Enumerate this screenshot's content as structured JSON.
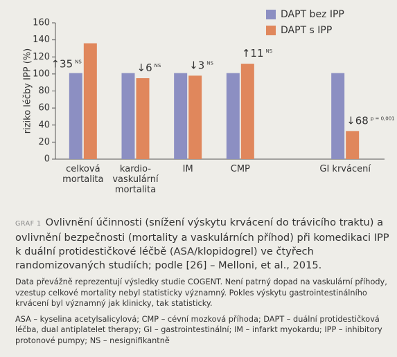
{
  "chart_data": {
    "type": "bar",
    "y_label": "riziko léčby IPP (%)",
    "categories": [
      "celková\nmortalita",
      "kardio-\nvaskulární\nmortalita",
      "IM",
      "CMP",
      null,
      "GI krvácení"
    ],
    "series": [
      {
        "name": "DAPT bez IPP",
        "color": "#8c8fc2",
        "values": [
          101,
          101,
          101,
          101,
          null,
          101
        ]
      },
      {
        "name": "DAPT s IPP",
        "color": "#e0875c",
        "values": [
          136,
          95,
          98,
          112,
          null,
          33
        ]
      }
    ],
    "annotations": [
      {
        "text": "↑35",
        "note": "NS"
      },
      {
        "text": "↓6",
        "note": "NS"
      },
      {
        "text": "↓3",
        "note": "NS"
      },
      {
        "text": "↑11",
        "note": "NS"
      },
      null,
      {
        "text": "↓68",
        "note": "p = 0,001"
      }
    ],
    "ylim": [
      0,
      160
    ],
    "yticks": [
      0,
      20,
      40,
      60,
      80,
      100,
      120,
      140,
      160
    ],
    "legend": "top-right"
  },
  "caption": {
    "label": "GRAF 1",
    "title": "Ovlivnění účinnosti (snížení výskytu krvácení do trávicího traktu) a ovlivnění bezpečnosti (mortality a vaskulárních příhod) při komedikaci IPP k duální protidestičkové léčbě (ASA/klopidogrel) ve čtyřech randomizovaných studiích; podle [26] – Melloni, et al., 2015.",
    "notes": [
      "Data převážně reprezentují výsledky studie COGENT. Není patrný dopad na vaskulární příhody, vzestup celkové mortality nebyl statisticky významný. Pokles výskytu gastrointestinálního krvácení byl významný jak klinicky, tak statisticky.",
      "ASA – kyselina acetylsalicylová; CMP – cévní mozková příhoda; DAPT – duální protidestičková léčba, dual antiplatelet therapy; GI – gastrointestinální; IM – infarkt myokardu; IPP – inhibitory protonové pumpy; NS – nesignifikantně"
    ]
  }
}
